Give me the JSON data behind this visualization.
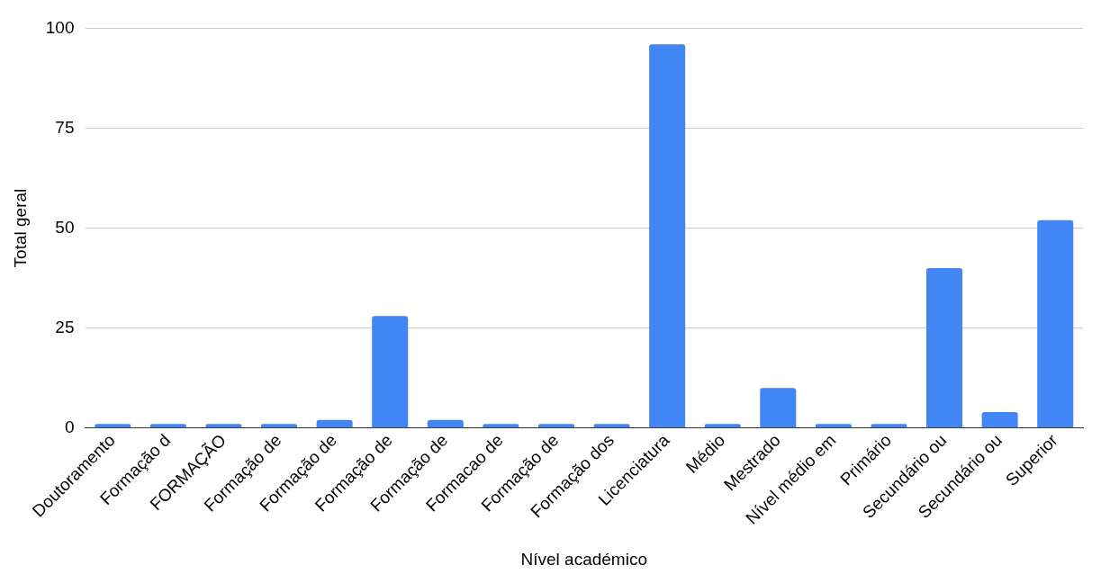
{
  "chart_data": {
    "type": "bar",
    "xlabel": "Nível académico",
    "ylabel": "Total geral",
    "categories": [
      "Doutoramento",
      "Formação d",
      "FORMAÇÃO",
      "Formação de",
      "Formação de",
      "Formação de",
      "Formação de",
      "Formacao de",
      "Formação de",
      "Formação dos",
      "Licenciatura",
      "Médio",
      "Mestrado",
      "Nível médio em",
      "Primário",
      "Secundário ou",
      "Secundário ou",
      "Superior"
    ],
    "values": [
      1,
      1,
      1,
      1,
      2,
      28,
      2,
      1,
      1,
      1,
      96,
      1,
      10,
      1,
      1,
      40,
      4,
      52
    ],
    "color": "#4285f4",
    "ylim": [
      0,
      100
    ],
    "yticks": [
      0,
      25,
      50,
      75,
      100
    ],
    "grid": "y",
    "legend": false
  }
}
